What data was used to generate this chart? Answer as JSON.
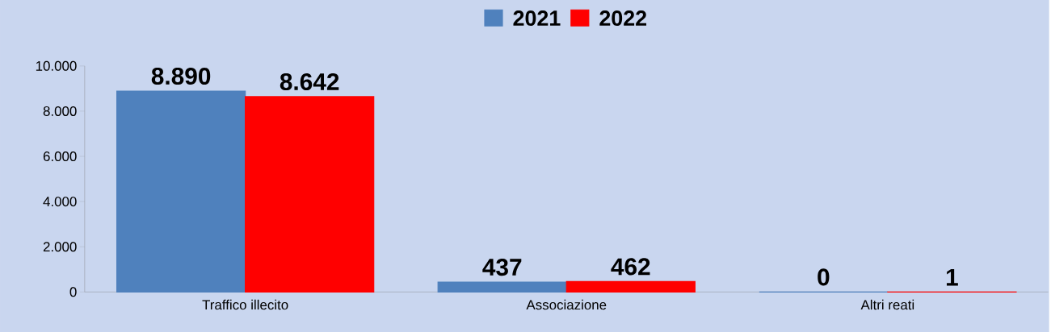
{
  "chart_data": {
    "type": "bar",
    "categories": [
      "Traffico illecito",
      "Associazione",
      "Altri reati"
    ],
    "series": [
      {
        "name": "2021",
        "color": "#4f81bd",
        "values": [
          8890,
          437,
          0
        ],
        "value_labels": [
          "8.890",
          "437",
          "0"
        ]
      },
      {
        "name": "2022",
        "color": "#ff0000",
        "values": [
          8642,
          462,
          1
        ],
        "value_labels": [
          "8.642",
          "462",
          "1"
        ]
      }
    ],
    "ylim": [
      0,
      10000
    ],
    "yticks": [
      {
        "value": 0,
        "label": "0"
      },
      {
        "value": 2000,
        "label": "2.000"
      },
      {
        "value": 4000,
        "label": "4.000"
      },
      {
        "value": 6000,
        "label": "6.000"
      },
      {
        "value": 8000,
        "label": "8.000"
      },
      {
        "value": 10000,
        "label": "10.000"
      }
    ],
    "legend": "top",
    "grid": false
  }
}
